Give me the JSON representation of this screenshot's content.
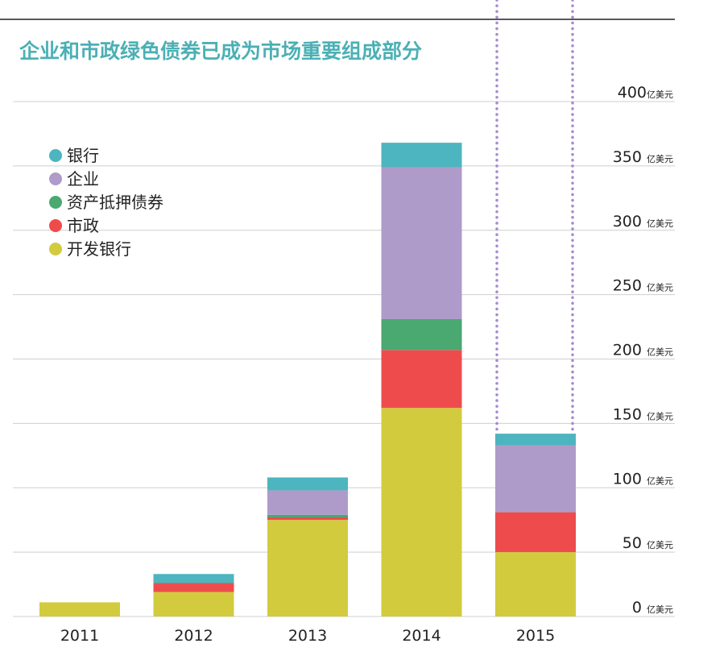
{
  "chart_data": {
    "type": "bar",
    "stacked": true,
    "title": "企业和市政绿色债券已成为市场重要组成部分",
    "categories": [
      "2011",
      "2012",
      "2013",
      "2014",
      "2015"
    ],
    "series": [
      {
        "name": "开发银行",
        "color": "#d2cb3e",
        "values": [
          11,
          19,
          75,
          162,
          50
        ]
      },
      {
        "name": "市政",
        "color": "#ee4c4c",
        "values": [
          0,
          7,
          2,
          45,
          31
        ]
      },
      {
        "name": "资产抵押债券",
        "color": "#4aa871",
        "values": [
          0,
          0,
          2,
          24,
          0
        ]
      },
      {
        "name": "企业",
        "color": "#af9bc9",
        "values": [
          0,
          0,
          19,
          118,
          52
        ]
      },
      {
        "name": "银行",
        "color": "#4cb5bf",
        "values": [
          0,
          7,
          10,
          19,
          9
        ]
      }
    ],
    "legend_order": [
      "银行",
      "企业",
      "资产抵押债券",
      "市政",
      "开发银行"
    ],
    "y_ticks": [
      0,
      50,
      100,
      150,
      200,
      250,
      300,
      350,
      400
    ],
    "y_unit": "亿美元",
    "ylim": [
      0,
      400
    ],
    "grid": true,
    "legend_position": "top-left",
    "y_axis_position": "right",
    "highlight": {
      "category": "2015",
      "style": "dotted-outline",
      "color": "#a28ccf"
    },
    "title_color": "#4bb0b4",
    "grid_color": "#cfcfcf"
  }
}
